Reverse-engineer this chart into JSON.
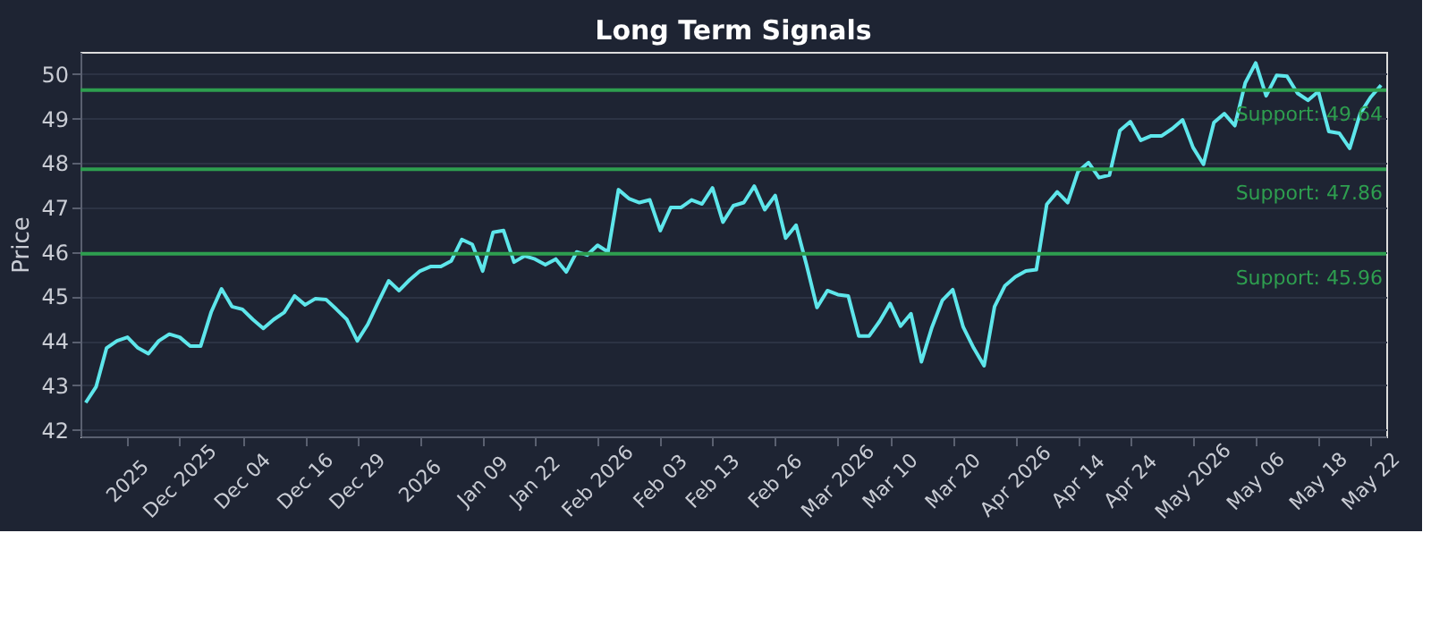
{
  "chart_data": {
    "type": "line",
    "title": "Long Term Signals",
    "ylabel": "Price",
    "categories": [
      null,
      null,
      null,
      null,
      "2025",
      null,
      null,
      null,
      null,
      "Dec 2025",
      null,
      null,
      null,
      null,
      null,
      "Dec 04",
      null,
      null,
      null,
      null,
      null,
      "Dec 16",
      null,
      null,
      null,
      null,
      "Dec 29",
      null,
      null,
      null,
      null,
      null,
      "2026",
      null,
      null,
      null,
      null,
      null,
      "Jan 09",
      null,
      null,
      null,
      null,
      "Jan 22",
      null,
      null,
      null,
      null,
      null,
      "Feb 2026",
      null,
      null,
      null,
      null,
      null,
      "Feb 03",
      null,
      null,
      null,
      null,
      "Feb 13",
      null,
      null,
      null,
      null,
      null,
      "Feb 26",
      null,
      null,
      null,
      null,
      null,
      "Mar 2026",
      null,
      null,
      null,
      null,
      "Mar 10",
      null,
      null,
      null,
      null,
      null,
      "Mar 20",
      null,
      null,
      null,
      null,
      null,
      "Apr 2026",
      null,
      null,
      null,
      null,
      null,
      "Apr 14",
      null,
      null,
      null,
      null,
      "Apr 24",
      null,
      null,
      null,
      null,
      null,
      "May 2026",
      null,
      null,
      null,
      null,
      null,
      "May 06",
      null,
      null,
      null,
      null,
      null,
      "May 18",
      null,
      null,
      null,
      null,
      "May 22",
      null
    ],
    "series": [
      {
        "color": "#5ee6eb",
        "values": [
          42.61,
          42.97,
          43.84,
          44.0,
          44.08,
          43.84,
          43.71,
          44.0,
          44.15,
          44.08,
          43.88,
          43.88,
          44.64,
          45.17,
          44.77,
          44.71,
          44.48,
          44.28,
          44.48,
          44.64,
          45.01,
          44.81,
          44.95,
          44.93,
          44.71,
          44.48,
          44.0,
          44.37,
          44.87,
          45.35,
          45.13,
          45.37,
          45.57,
          45.67,
          45.67,
          45.8,
          46.28,
          46.17,
          45.57,
          46.44,
          46.48,
          45.77,
          45.91,
          45.84,
          45.71,
          45.84,
          45.55,
          46.0,
          45.93,
          46.15,
          46.0,
          47.4,
          47.2,
          47.11,
          47.17,
          46.48,
          47.0,
          47.0,
          47.17,
          47.08,
          47.44,
          46.67,
          47.04,
          47.11,
          47.48,
          46.95,
          47.27,
          46.31,
          46.6,
          45.71,
          44.75,
          45.13,
          45.04,
          45.01,
          44.11,
          44.11,
          44.44,
          44.84,
          44.33,
          44.61,
          43.53,
          44.3,
          44.91,
          45.15,
          44.31,
          43.84,
          43.44,
          44.77,
          45.24,
          45.44,
          45.57,
          45.6,
          47.07,
          47.35,
          47.11,
          47.81,
          48.01,
          47.67,
          47.73,
          48.73,
          48.93,
          48.51,
          48.61,
          48.61,
          48.77,
          48.97,
          48.35,
          47.97,
          48.91,
          49.11,
          48.84,
          49.8,
          50.25,
          49.51,
          49.97,
          49.95,
          49.57,
          49.41,
          49.61,
          48.71,
          48.67,
          48.33,
          49.11,
          49.48,
          49.75
        ]
      }
    ],
    "ylim": [
      41.85,
      50.5
    ],
    "yticks": [
      42,
      43,
      44,
      45,
      46,
      47,
      48,
      49,
      50
    ],
    "grid": "y",
    "ref_lines": [
      {
        "axis": "y",
        "value": 49.64,
        "label": "Support: 49.64",
        "color": "#2e9e4f"
      },
      {
        "axis": "y",
        "value": 47.86,
        "label": "Support: 47.86",
        "color": "#2e9e4f"
      },
      {
        "axis": "y",
        "value": 45.96,
        "label": "Support: 45.96",
        "color": "#2e9e4f"
      }
    ]
  }
}
